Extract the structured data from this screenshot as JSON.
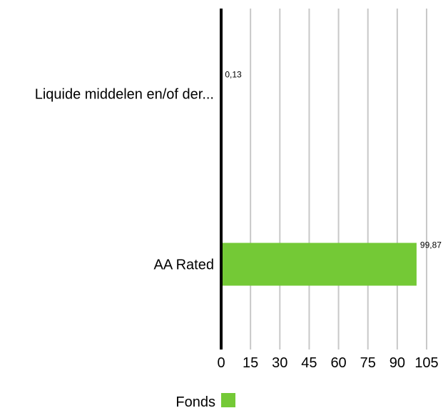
{
  "chart_data": {
    "type": "bar",
    "orientation": "horizontal",
    "categories": [
      "Liquide middelen en/of der...",
      "AA Rated"
    ],
    "series": [
      {
        "name": "Fonds",
        "values": [
          0.13,
          99.87
        ],
        "value_labels": [
          "0,13",
          "99,87"
        ]
      }
    ],
    "xlim": [
      0,
      105
    ],
    "x_ticks": [
      0,
      15,
      30,
      45,
      60,
      75,
      90,
      105
    ],
    "grid": true,
    "legend_position": "bottom",
    "colors": {
      "bar": "#74c936",
      "grid": "#c8c8c8",
      "axis": "#000000"
    }
  }
}
